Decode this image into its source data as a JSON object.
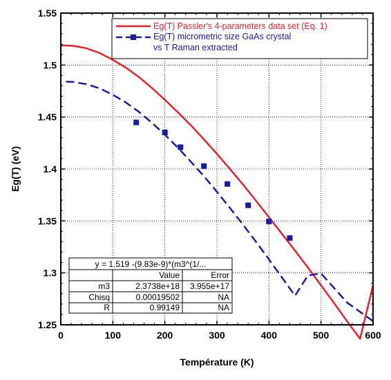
{
  "chart_data": {
    "type": "line",
    "xlabel": "Température (K)",
    "ylabel": "Eg(T) (eV)",
    "xlim": [
      0,
      600
    ],
    "ylim": [
      1.25,
      1.55
    ],
    "xticks": [
      "0",
      "100",
      "200",
      "300",
      "400",
      "500",
      "600"
    ],
    "yticks": [
      "1.25",
      "1.3",
      "1.35",
      "1.4",
      "1.45",
      "1.5",
      "1.55"
    ],
    "grid": "dotted",
    "legend_position": "top-right",
    "series": [
      {
        "name": "Eg(T) Passler's 4-parameters data set (Eq. 1)",
        "style": "solid line",
        "color": "#e8202a",
        "x": [
          0,
          25,
          50,
          75,
          100,
          125,
          150,
          175,
          200,
          225,
          250,
          275,
          300,
          325,
          350,
          375,
          400,
          425,
          450,
          475,
          500,
          525,
          550,
          575,
          600
        ],
        "y": [
          1.519,
          1.5185,
          1.516,
          1.5115,
          1.505,
          1.4975,
          1.4885,
          1.478,
          1.4665,
          1.4545,
          1.442,
          1.4285,
          1.4145,
          1.4,
          1.385,
          1.3695,
          1.3535,
          1.3375,
          1.3215,
          1.305,
          1.288,
          1.271,
          1.2535,
          1.2365,
          1.288
        ]
      },
      {
        "name": "Eg(T) micrometric size GaAs crystal vs T Raman extracted",
        "style": "dashed line with square markers",
        "color": "#1a1aa6",
        "fit_x": [
          10,
          25,
          50,
          75,
          100,
          125,
          150,
          175,
          200,
          225,
          250,
          275,
          300,
          325,
          350,
          375,
          400,
          425,
          450,
          475,
          500,
          525,
          550,
          575,
          600
        ],
        "fit_y": [
          1.484,
          1.4837,
          1.4815,
          1.4775,
          1.4715,
          1.464,
          1.455,
          1.4445,
          1.433,
          1.4205,
          1.407,
          1.393,
          1.378,
          1.3625,
          1.3465,
          1.33,
          1.313,
          1.2955,
          1.278,
          1.2975,
          1.2995,
          1.2855,
          1.2715,
          1.2625,
          1.2535
        ],
        "points_x": [
          145,
          200,
          230,
          275,
          320,
          360,
          400,
          440
        ],
        "points_y": [
          1.4448,
          1.4352,
          1.421,
          1.4028,
          1.3855,
          1.365,
          1.3495,
          1.3335
        ]
      }
    ]
  },
  "legend": {
    "line1": "Eg(T) Passler's 4-parameters data set (Eq. 1)",
    "line2a": "Eg(T) micrometric size GaAs crystal",
    "line2b": "vs T Raman extracted"
  },
  "fit_table": {
    "equation": "y = 1.519 -(9.83e-9)*(m3^(1/...",
    "header": [
      "",
      "Value",
      "Error"
    ],
    "rows": [
      [
        "m3",
        "2.3738e+18",
        "3.955e+17"
      ],
      [
        "Chisq",
        "0.00019502",
        "NA"
      ],
      [
        "R",
        "0.99149",
        "NA"
      ]
    ]
  }
}
